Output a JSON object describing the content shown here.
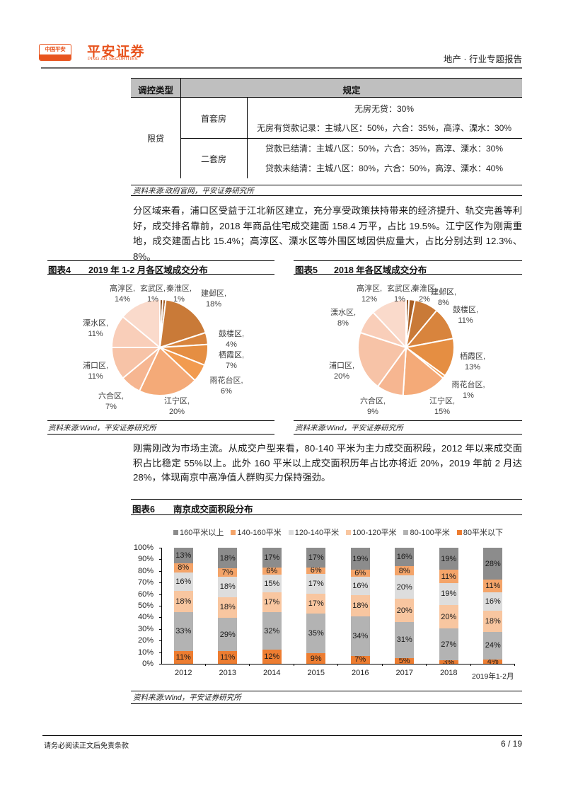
{
  "header": {
    "logo_badge": "中国平安",
    "brand_cn": "平安证券",
    "brand_en": "PING AN SECURITIES",
    "report_type": "地产 · 行业专题报告"
  },
  "colors": {
    "brand": "#E8541E",
    "table_header_bg": "#BFBFBF"
  },
  "policy_table": {
    "headers": [
      "调控类型",
      "规定"
    ],
    "category": "限贷",
    "rows": [
      {
        "type": "首套房",
        "rules": [
          "无房无贷：30%",
          "无房有贷款记录：主城八区：50%，六合：35%，高淳、溧水：30%"
        ]
      },
      {
        "type": "二套房",
        "rules": [
          "贷款已结清：主城八区：50%，六合：35%，高淳、溧水：30%",
          "贷款未结清：主城八区：80%，六合：50%，高淳、溧水：40%"
        ]
      }
    ],
    "source": "资料来源:政府官网，平安证券研究所"
  },
  "paragraphs": [
    "分区域来看，浦口区受益于江北新区建立，充分享受政策扶持带来的经济提升、轨交完善等利好，成交排名靠前，2018 年商品住宅成交建面 158.4 万平，占比 19.5%。江宁区作为刚需重地，成交建面占比 15.4%；高淳区、溧水区等外围区域因供应量大，占比分别达到 12.3%、8%。",
    "刚需刚改为市场主流。从成交户型来看，80-140 平米为主力成交面积段，2012 年以来成交面积占比稳定 55%以上。此外 160 平米以上成交面积历年占比亦将近 20%，2019 年前 2 月达 28%，体现南京中高净值人群购买力保持强劲。"
  ],
  "figures": [
    {
      "label": "图表4",
      "title": "2019 年 1-2 月各区域成交分布",
      "source": "资料来源:Wind，平安证券研究所"
    },
    {
      "label": "图表5",
      "title": "2018 年各区域成交分布",
      "source": "资料来源:Wind，平安证券研究所"
    },
    {
      "label": "图表6",
      "title": "南京成交面积段分布",
      "source": "资料来源:Wind，平安证券研究所"
    }
  ],
  "footer": {
    "disclaimer": "请务必阅读正文后免责条款",
    "page": "6 / 19"
  },
  "chart_data": [
    {
      "type": "pie",
      "title": "2019 年 1-2 月各区域成交分布",
      "categories": [
        "玄武区",
        "秦淮区",
        "建邺区",
        "鼓楼区",
        "栖霞区",
        "雨花台区",
        "江宁区",
        "六合区",
        "浦口区",
        "溧水区",
        "高淳区"
      ],
      "values": [
        1,
        1,
        18,
        4,
        7,
        6,
        20,
        7,
        11,
        11,
        14
      ],
      "unit": "%",
      "colors": [
        "#8E4E1C",
        "#A85F26",
        "#C97A38",
        "#D8843D",
        "#E58E42",
        "#F29B4F",
        "#F4AA78",
        "#F6B691",
        "#F7C3A7",
        "#F9CEB9",
        "#FADACB"
      ],
      "legend": "none (data labels outside slices)"
    },
    {
      "type": "pie",
      "title": "2018 年各区域成交分布",
      "categories": [
        "玄武区",
        "秦淮区",
        "建邺区",
        "鼓楼区",
        "栖霞区",
        "雨花台区",
        "江宁区",
        "六合区",
        "浦口区",
        "溧水区",
        "高淳区"
      ],
      "values": [
        1,
        2,
        8,
        11,
        13,
        1,
        15,
        9,
        20,
        8,
        12
      ],
      "unit": "%",
      "colors": [
        "#8E4E1C",
        "#A85F26",
        "#C97A38",
        "#D8843D",
        "#E58E42",
        "#F29B4F",
        "#F4AA78",
        "#F6B691",
        "#F7C3A7",
        "#F9CEB9",
        "#FADACB"
      ],
      "legend": "none (data labels outside slices)"
    },
    {
      "type": "bar",
      "stacked": true,
      "normalized": true,
      "title": "南京成交面积段分布",
      "xlabel": "",
      "ylabel": "",
      "categories": [
        "2012",
        "2013",
        "2014",
        "2015",
        "2016",
        "2017",
        "2018",
        "2019年1-2月"
      ],
      "series": [
        {
          "name": "160平米以上",
          "color": "#8C8C8C",
          "values": [
            13,
            18,
            17,
            17,
            19,
            16,
            19,
            28
          ]
        },
        {
          "name": "140-160平米",
          "color": "#F4A469",
          "values": [
            8,
            7,
            6,
            6,
            6,
            8,
            11,
            11
          ]
        },
        {
          "name": "120-140平米",
          "color": "#DDDDDD",
          "values": [
            16,
            18,
            15,
            17,
            16,
            20,
            19,
            16
          ]
        },
        {
          "name": "100-120平米",
          "color": "#F8C6A0",
          "values": [
            18,
            18,
            17,
            17,
            18,
            20,
            20,
            18
          ]
        },
        {
          "name": "80-100平米",
          "color": "#B3B3B3",
          "values": [
            33,
            29,
            32,
            35,
            34,
            31,
            27,
            24
          ]
        },
        {
          "name": "80平米以下",
          "color": "#ED7D31",
          "values": [
            11,
            11,
            12,
            9,
            7,
            5,
            3,
            4
          ]
        }
      ],
      "yticks": [
        "0%",
        "10%",
        "20%",
        "30%",
        "40%",
        "50%",
        "60%",
        "70%",
        "80%",
        "90%",
        "100%"
      ],
      "ylim": [
        0,
        100
      ],
      "grid": false,
      "legend_position": "top"
    }
  ]
}
